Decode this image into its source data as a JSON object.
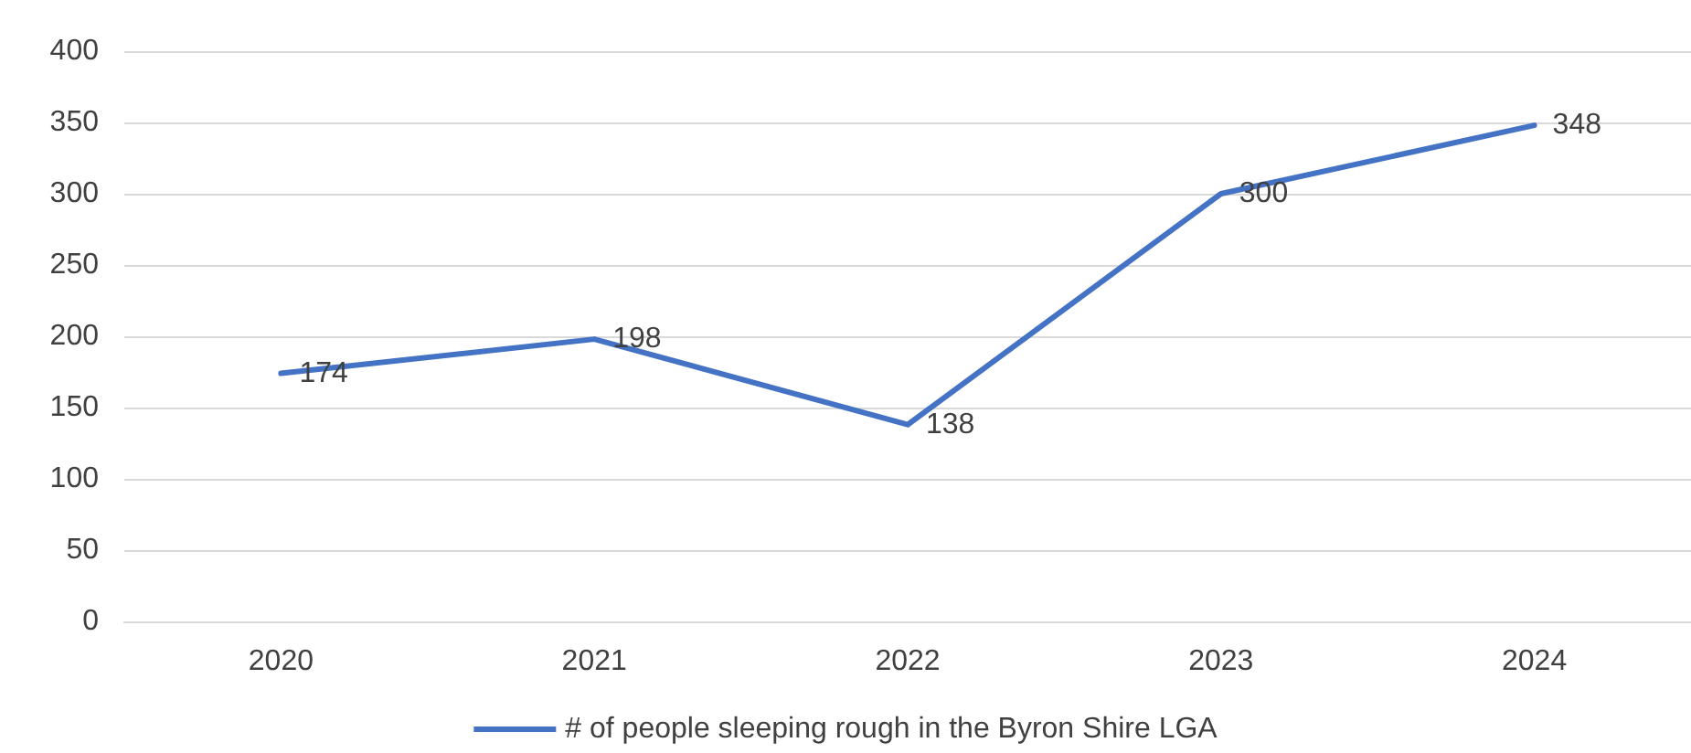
{
  "chart_data": {
    "type": "line",
    "categories": [
      "2020",
      "2021",
      "2022",
      "2023",
      "2024"
    ],
    "series": [
      {
        "name": "# of people sleeping rough in the Byron Shire LGA",
        "color": "#4472c4",
        "values": [
          174,
          198,
          138,
          300,
          348
        ]
      }
    ],
    "ylim": [
      0,
      400
    ],
    "yticks": [
      0,
      50,
      100,
      150,
      200,
      250,
      300,
      350,
      400
    ],
    "grid": "y",
    "legend": "bottom",
    "data_labels": true,
    "marker": "none",
    "line_style": "solid"
  }
}
